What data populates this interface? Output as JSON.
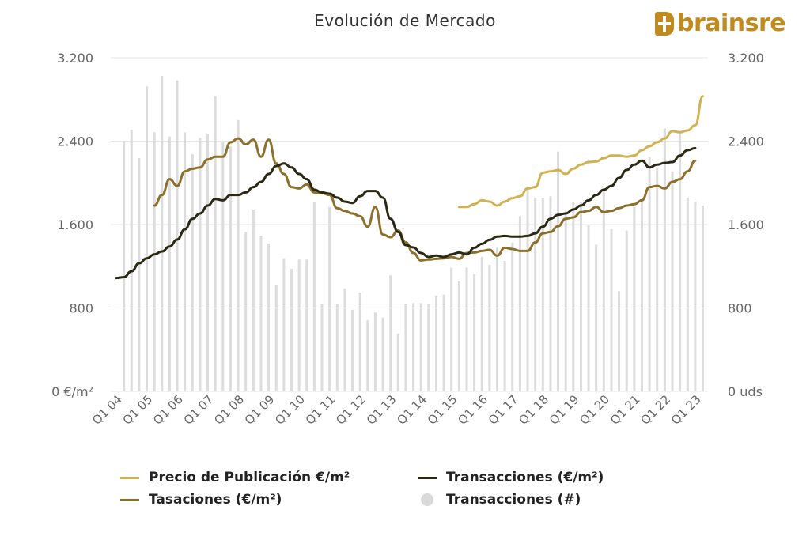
{
  "logo_text": "brainsre",
  "chart_data": {
    "type": "line",
    "title": "Evolución de Mercado",
    "xlabel": "",
    "ylabel_left": "€/m²",
    "ylabel_right": "uds",
    "ylim": [
      0,
      3200
    ],
    "yticks_left": [
      "0 €/m²",
      "800",
      "1.600",
      "2.400",
      "3.200"
    ],
    "yticks_right": [
      "0 uds",
      "800",
      "1.600",
      "2.400",
      "3.200"
    ],
    "ytick_values": [
      0,
      800,
      1600,
      2400,
      3200
    ],
    "grid": true,
    "legend_position": "bottom",
    "xtick_labels": [
      "Q1 04",
      "Q1 05",
      "Q1 06",
      "Q1 07",
      "Q1 08",
      "Q1 09",
      "Q1 10",
      "Q1 11",
      "Q1 12",
      "Q1 13",
      "Q1 14",
      "Q1 15",
      "Q1 16",
      "Q1 17",
      "Q1 18",
      "Q1 19",
      "Q1 20",
      "Q1 21",
      "Q1 22",
      "Q1 23"
    ],
    "quarters_count": 78,
    "series": [
      {
        "name": "Precio de Publicación €/m²",
        "type": "line",
        "color": "#d2b152",
        "start_index": 45,
        "values": [
          1769,
          1769,
          1795,
          1832,
          1820,
          1782,
          1820,
          1853,
          1871,
          1946,
          1959,
          2098,
          2110,
          2123,
          2085,
          2136,
          2174,
          2199,
          2205,
          2237,
          2262,
          2262,
          2250,
          2262,
          2313,
          2351,
          2389,
          2426,
          2495,
          2485,
          2502,
          2553,
          2830
        ]
      },
      {
        "name": "Transacciones (€/m²)",
        "type": "line",
        "color": "#2b2914",
        "start_index": 0,
        "values": [
          1087,
          1095,
          1152,
          1228,
          1276,
          1314,
          1342,
          1390,
          1456,
          1554,
          1655,
          1706,
          1782,
          1845,
          1832,
          1883,
          1883,
          1908,
          1959,
          2009,
          2085,
          2161,
          2186,
          2148,
          2085,
          2035,
          1934,
          1908,
          1896,
          1858,
          1820,
          1807,
          1871,
          1921,
          1921,
          1858,
          1655,
          1529,
          1403,
          1380,
          1327,
          1289,
          1302,
          1289,
          1314,
          1332,
          1314,
          1377,
          1415,
          1453,
          1484,
          1491,
          1484,
          1484,
          1491,
          1516,
          1579,
          1655,
          1693,
          1706,
          1744,
          1782,
          1832,
          1883,
          1934,
          1971,
          2047,
          2123,
          2174,
          2212,
          2148,
          2174,
          2191,
          2199,
          2262,
          2313,
          2333
        ]
      },
      {
        "name": "Tasaciones (€/m²)",
        "type": "line",
        "color": "#8c6f2b",
        "start_index": 5,
        "values": [
          1782,
          1883,
          2035,
          1971,
          2110,
          2136,
          2148,
          2224,
          2250,
          2250,
          2389,
          2426,
          2369,
          2414,
          2250,
          2414,
          2186,
          2085,
          1959,
          1946,
          1984,
          1908,
          1901,
          1883,
          1757,
          1731,
          1706,
          1681,
          1580,
          1769,
          1504,
          1479,
          1542,
          1428,
          1327,
          1256,
          1264,
          1271,
          1276,
          1289,
          1271,
          1327,
          1332,
          1347,
          1357,
          1302,
          1377,
          1365,
          1347,
          1347,
          1428,
          1516,
          1529,
          1584,
          1655,
          1668,
          1719,
          1731,
          1769,
          1719,
          1731,
          1757,
          1782,
          1795,
          1832,
          1959,
          1971,
          1946,
          2009,
          2035,
          2110,
          2212
        ]
      },
      {
        "name": "Transacciones (#)",
        "type": "bar",
        "color": "#dcdcdc",
        "start_index": 1,
        "values": [
          2401,
          2510,
          2237,
          2925,
          2485,
          3025,
          2444,
          2982,
          2485,
          2275,
          2432,
          2470,
          2831,
          2389,
          2350,
          2603,
          1529,
          1744,
          1494,
          1418,
          1024,
          1276,
          1175,
          1264,
          1264,
          1812,
          834,
          1769,
          842,
          986,
          783,
          948,
          682,
          758,
          708,
          1112,
          556,
          841,
          847,
          847,
          841,
          917,
          928,
          1188,
          1054,
          1188,
          1125,
          1289,
          1213,
          1377,
          1251,
          1428,
          1681,
          1959,
          1858,
          1858,
          1871,
          2300,
          1731,
          1812,
          1812,
          1592,
          1408,
          1926,
          1554,
          961,
          1542,
          1769,
          1820,
          2250,
          2148,
          2520,
          2110,
          2485,
          1858,
          1820,
          1782
        ]
      }
    ]
  }
}
